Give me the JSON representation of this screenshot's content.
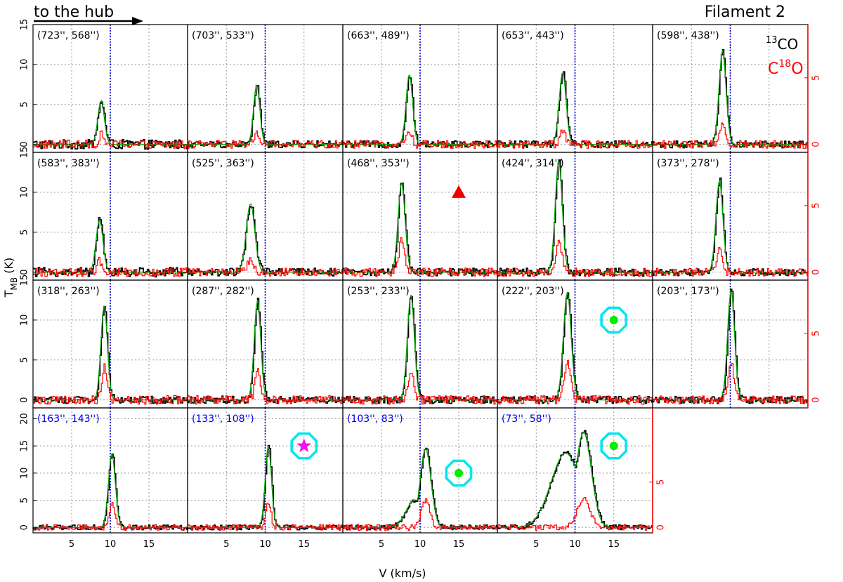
{
  "header": {
    "left_text": "to the hub",
    "right_text": "Filament 2"
  },
  "legend": {
    "line1_sup": "13",
    "line1_text": "CO",
    "line2_text": "C",
    "line2_sup": "18",
    "line2_tail": "O"
  },
  "axes": {
    "xlabel": "V (km/s)",
    "ylabel_main": "T",
    "ylabel_sub": "MB",
    "ylabel_tail": " (K)"
  },
  "colors": {
    "co13": "#000000",
    "c18o": "#ff0000",
    "fit": "#00aa00",
    "vline": "#0000cc",
    "grid": "#999999",
    "marker_cyan": "#00e5ee",
    "marker_green": "#00ee00",
    "marker_star": "#ee11ee",
    "marker_triangle": "#ee0000",
    "label_blue": "#0000ee"
  },
  "chart_data": {
    "type": "line",
    "title": "Filament 2",
    "xlabel": "V (km/s)",
    "ylabel_left": "T_MB (K)",
    "xlim": [
      0,
      20
    ],
    "xticks": [
      5,
      10,
      15
    ],
    "ref_velocity": 10,
    "series_names": [
      "13CO",
      "C18O"
    ],
    "rows": [
      {
        "ylim_left": [
          -1,
          15
        ],
        "ylim_right": [
          -0.6,
          9
        ],
        "left_ticks": [
          0,
          5,
          10,
          15
        ],
        "right_ticks": [
          0,
          5
        ]
      },
      {
        "ylim_left": [
          -1,
          15
        ],
        "ylim_right": [
          -0.6,
          9
        ],
        "left_ticks": [
          0,
          5,
          10,
          15
        ],
        "right_ticks": [
          0,
          5
        ]
      },
      {
        "ylim_left": [
          -1,
          15
        ],
        "ylim_right": [
          -0.6,
          9
        ],
        "left_ticks": [
          0,
          5,
          10,
          15
        ],
        "right_ticks": [
          0,
          5
        ]
      },
      {
        "ylim_left": [
          -1,
          22
        ],
        "ylim_right": [
          -0.6,
          13.2
        ],
        "left_ticks": [
          0,
          5,
          10,
          15,
          20
        ],
        "right_ticks": [
          0,
          5
        ]
      }
    ],
    "panels": [
      {
        "label": "(723'', 568'')",
        "row": 0,
        "col": 0,
        "label_color": "black",
        "co_peak": 5.5,
        "co_v": 8.8,
        "co_w": 0.42,
        "c18o_peak": 1.2,
        "noise_co": 0.6,
        "noise_c18o": 0.55,
        "marker": ""
      },
      {
        "label": "(703'', 533'')",
        "row": 0,
        "col": 1,
        "label_color": "black",
        "co_peak": 7.5,
        "co_v": 8.9,
        "co_w": 0.4,
        "c18o_peak": 1.5,
        "noise_co": 0.45,
        "noise_c18o": 0.5,
        "marker": ""
      },
      {
        "label": "(663'', 489'')",
        "row": 0,
        "col": 2,
        "label_color": "black",
        "co_peak": 8.8,
        "co_v": 8.6,
        "co_w": 0.42,
        "c18o_peak": 1.6,
        "noise_co": 0.45,
        "noise_c18o": 0.5,
        "marker": ""
      },
      {
        "label": "(653'', 443'')",
        "row": 0,
        "col": 3,
        "label_color": "black",
        "co_peak": 9.0,
        "co_v": 8.4,
        "co_w": 0.45,
        "c18o_peak": 1.8,
        "noise_co": 0.45,
        "noise_c18o": 0.5,
        "marker": ""
      },
      {
        "label": "(598'', 438'')",
        "row": 0,
        "col": 4,
        "label_color": "black",
        "co_peak": 11.8,
        "co_v": 9.0,
        "co_w": 0.45,
        "c18o_peak": 2.5,
        "noise_co": 0.45,
        "noise_c18o": 0.5,
        "marker": ""
      },
      {
        "label": "(583'', 383'')",
        "row": 1,
        "col": 0,
        "label_color": "black",
        "co_peak": 6.5,
        "co_v": 8.6,
        "co_w": 0.45,
        "c18o_peak": 1.4,
        "noise_co": 0.6,
        "noise_c18o": 0.55,
        "marker": ""
      },
      {
        "label": "(525'', 363'')",
        "row": 1,
        "col": 1,
        "label_color": "black",
        "co_peak": 8.6,
        "co_v": 8.1,
        "co_w": 0.55,
        "c18o_peak": 1.5,
        "noise_co": 0.5,
        "noise_c18o": 0.5,
        "marker": ""
      },
      {
        "label": "(468'', 353'')",
        "row": 1,
        "col": 2,
        "label_color": "black",
        "co_peak": 11.2,
        "co_v": 7.6,
        "co_w": 0.45,
        "c18o_peak": 4.2,
        "noise_co": 0.5,
        "noise_c18o": 0.55,
        "marker": "triangle"
      },
      {
        "label": "(424'', 314'')",
        "row": 1,
        "col": 3,
        "label_color": "black",
        "co_peak": 14.0,
        "co_v": 7.9,
        "co_w": 0.45,
        "c18o_peak": 4.0,
        "noise_co": 0.5,
        "noise_c18o": 0.55,
        "marker": ""
      },
      {
        "label": "(373'', 278'')",
        "row": 1,
        "col": 4,
        "label_color": "black",
        "co_peak": 11.5,
        "co_v": 8.6,
        "co_w": 0.45,
        "c18o_peak": 3.0,
        "noise_co": 0.45,
        "noise_c18o": 0.5,
        "marker": ""
      },
      {
        "label": "(318'', 263'')",
        "row": 2,
        "col": 0,
        "label_color": "black",
        "co_peak": 11.8,
        "co_v": 9.2,
        "co_w": 0.42,
        "c18o_peak": 4.0,
        "noise_co": 0.45,
        "noise_c18o": 0.55,
        "marker": ""
      },
      {
        "label": "(287'', 282'')",
        "row": 2,
        "col": 1,
        "label_color": "black",
        "co_peak": 12.5,
        "co_v": 9.0,
        "co_w": 0.42,
        "c18o_peak": 3.5,
        "noise_co": 0.45,
        "noise_c18o": 0.55,
        "marker": ""
      },
      {
        "label": "(253'', 233'')",
        "row": 2,
        "col": 2,
        "label_color": "black",
        "co_peak": 13.2,
        "co_v": 8.8,
        "co_w": 0.45,
        "c18o_peak": 3.5,
        "noise_co": 0.45,
        "noise_c18o": 0.55,
        "marker": ""
      },
      {
        "label": "(222'', 203'')",
        "row": 2,
        "col": 3,
        "label_color": "black",
        "co_peak": 13.5,
        "co_v": 9.0,
        "co_w": 0.5,
        "c18o_peak": 5.0,
        "noise_co": 0.45,
        "noise_c18o": 0.55,
        "marker": "cyan-green"
      },
      {
        "label": "(203'', 173'')",
        "row": 2,
        "col": 4,
        "label_color": "black",
        "co_peak": 13.8,
        "co_v": 10.1,
        "co_w": 0.45,
        "c18o_peak": 4.5,
        "noise_co": 0.45,
        "noise_c18o": 0.5,
        "marker": ""
      },
      {
        "label": "(163'', 143'')",
        "row": 3,
        "col": 0,
        "label_color": "blue",
        "co_peak": 13.5,
        "co_v": 10.2,
        "co_w": 0.45,
        "c18o_peak": 4.2,
        "noise_co": 0.45,
        "noise_c18o": 0.55,
        "marker": ""
      },
      {
        "label": "(133'', 108'')",
        "row": 3,
        "col": 1,
        "label_color": "blue",
        "co_peak": 15.0,
        "co_v": 10.4,
        "co_w": 0.4,
        "c18o_peak": 4.5,
        "noise_co": 0.45,
        "noise_c18o": 0.55,
        "marker": "cyan-star"
      },
      {
        "label": "(103'', 83'')",
        "row": 3,
        "col": 2,
        "label_color": "blue",
        "co_peak": 14.5,
        "co_v": 10.7,
        "co_w": 0.7,
        "c18o_peak": 4.8,
        "noise_co": 0.45,
        "noise_c18o": 0.55,
        "marker": "cyan-green",
        "shoulder": 1
      },
      {
        "label": "(73'', 58'')",
        "row": 3,
        "col": 3,
        "label_color": "blue",
        "co_peak": 17.5,
        "co_v": 11.1,
        "co_w": 1.0,
        "c18o_peak": 5.5,
        "noise_co": 0.45,
        "noise_c18o": 0.55,
        "marker": "cyan-green",
        "shoulder": 2
      }
    ]
  }
}
